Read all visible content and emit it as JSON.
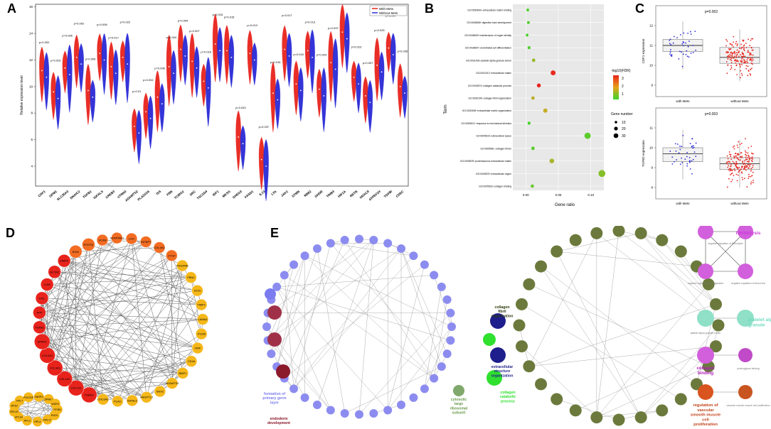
{
  "panels": {
    "A": "A",
    "B": "B",
    "C": "C",
    "D": "D",
    "E": "E"
  },
  "colors": {
    "with_mets": "#e8231c",
    "without_mets": "#2a2ad6",
    "network_red": "#e8231c",
    "network_orange": "#f26c22",
    "network_yellow": "#f5b719",
    "go_node_blue": "#8c8cf0",
    "go_node_olive": "#6b7a3c",
    "go_node_magenta": "#d25fdc",
    "go_node_mint": "#8fe0c6",
    "go_node_orange": "#d9541e"
  },
  "panelA": {
    "ylabel": "Relative expression level",
    "legend": [
      "With Mets",
      "Without Mets"
    ],
    "yticks": [
      "4",
      "6",
      "8",
      "10",
      "12",
      "14",
      "16"
    ],
    "genes": [
      "CDF1",
      "GPM1",
      "SLC35A3",
      "DNAIC2",
      "TGFB1",
      "IGFALS",
      "CREB3",
      "VTRN3",
      "ADAMTS2",
      "PLA2G16",
      "ISS",
      "FBN",
      "TCIRG1",
      "SRC",
      "TSC1D4",
      "IDF1",
      "MKSS",
      "SHEG3",
      "FASD1",
      "IL13",
      "LTA",
      "JAK1",
      "STMN",
      "RB82",
      "GHDR",
      "TRIB3",
      "HIF1A",
      "RETN",
      "HDAC9",
      "ATP6V1H",
      "TGFBI",
      "CDEC"
    ],
    "pvalues": [
      "p=0.002",
      "p=0.002",
      "p=0.006",
      "p=0.002",
      "p=0.005",
      "p=0.008",
      "p=0.017",
      "p=0.022",
      "p=0.01",
      "p=0.002",
      "p=0.006",
      "p=0.004",
      "p=0.004",
      "p=0.007",
      "p=0.018",
      "p=0.015",
      "p=0.015",
      "p=0.043",
      "p=0.013",
      "p=0.037",
      "p=0.015",
      "p=0.017",
      "p=0.043",
      "p=0.013",
      "p=0.024",
      "p=0.037",
      "p=0.044",
      "p=0.023",
      "p=0.007",
      "p=0.025",
      "p=0.047",
      "p=0.035"
    ]
  },
  "panelB": {
    "ylabel": "Term",
    "xlabel": "Gene ratio",
    "xticks": [
      "0.00",
      "0.05",
      "0.10"
    ],
    "terms": [
      "GO:0050840~extracellular matrix binding",
      "GO:0048565~digestive tract development",
      "GO:0048609~maintenance of organ identity",
      "GO:0038967~endothelial cell differentiation",
      "GO:0031093~platelet alpha granule lumen",
      "GO:0031012~extracellular matrix",
      "GO:0030574~collagen catabolic process",
      "GO:0030199~collagen fibril organization",
      "GO:0030198~extracellular matrix organization",
      "GO:0009612~response to mechanical stimulus",
      "GO:0005615~extracellular space",
      "GO:0005581~collagen trimer",
      "GO:0005578~proteinaceous extracellular matrix",
      "GO:0005576~extracellular region",
      "GO:0005518~collagen binding"
    ],
    "legend_color_title": "-log10(FDR)",
    "legend_color_ticks": [
      "3",
      "2",
      "1"
    ],
    "legend_size_title": "Gene number",
    "legend_size_ticks": [
      "10",
      "20",
      "30"
    ]
  },
  "chart_data": [
    {
      "type": "scatter",
      "title": "GO enrichment",
      "xlabel": "Gene ratio",
      "ylabel": "Term",
      "xlim": [
        -0.02,
        0.12
      ],
      "categories": [
        "extracellular matrix binding",
        "digestive tract development",
        "maintenance of organ identity",
        "endothelial cell differentiation",
        "platelet alpha granule lumen",
        "extracellular matrix",
        "collagen catabolic process",
        "collagen fibril organization",
        "extracellular matrix organization",
        "response to mechanical stimulus",
        "extracellular space",
        "collagen trimer",
        "proteinaceous extracellular matrix",
        "extracellular region",
        "collagen binding"
      ],
      "x": [
        0.003,
        0.004,
        0.002,
        0.005,
        0.012,
        0.042,
        0.02,
        0.011,
        0.03,
        0.005,
        0.095,
        0.011,
        0.04,
        0.117,
        0.01
      ],
      "neg_log10_fdr": [
        0.5,
        0.5,
        0.4,
        0.5,
        1.2,
        3.4,
        3.5,
        1.5,
        1.6,
        0.4,
        0.6,
        0.6,
        1.3,
        1.0,
        0.7
      ],
      "gene_number": [
        2,
        2,
        2,
        3,
        5,
        17,
        8,
        5,
        11,
        3,
        34,
        5,
        14,
        44,
        4
      ]
    },
    {
      "type": "box",
      "title": "p=0.002",
      "ylabel": "CDF1 expression",
      "categories": [
        "with Mets",
        "without Mets"
      ],
      "ylim": [
        8.5,
        12.5
      ],
      "median": [
        11.0,
        10.4
      ],
      "q1": [
        10.7,
        10.1
      ],
      "q3": [
        11.3,
        10.9
      ]
    },
    {
      "type": "box",
      "title": "p=0.003",
      "ylabel": "TGFB2 expression",
      "categories": [
        "with Mets",
        "without Mets"
      ],
      "ylim": [
        7.5,
        11.5
      ],
      "median": [
        9.7,
        9.2
      ],
      "q1": [
        9.3,
        8.9
      ],
      "q3": [
        10.0,
        9.5
      ]
    }
  ],
  "panelC": {
    "top": {
      "pvalue": "p=0.002",
      "ylabel": "CDF1 expression",
      "yticks": [
        "12",
        "11",
        "10",
        "9"
      ],
      "xticks": [
        "with Mets",
        "without Mets"
      ]
    },
    "bottom": {
      "pvalue": "p=0.003",
      "ylabel": "TGFB2 expression",
      "yticks": [
        "11",
        "10",
        "9",
        "8"
      ],
      "xticks": [
        "with Mets",
        "without Mets"
      ]
    }
  },
  "panelD": {
    "nodes": [
      "THBS2",
      "COL1A1",
      "COL1A2",
      "COL3A1",
      "COL5A1",
      "SPARC",
      "TGFB1",
      "APP",
      "FN1",
      "LUM",
      "ACTA2",
      "MMP2",
      "BGN",
      "POSTN",
      "VCAN",
      "SERPINE1",
      "LOX",
      "IGFBP7",
      "COL4A1",
      "CTGF",
      "PDGFRB",
      "FBN1",
      "DCN",
      "TIMP1",
      "LAMA4",
      "ITGA5",
      "VWF",
      "CD44",
      "BMP1",
      "ADAMTS2",
      "SNX2",
      "ANGPTL2",
      "IGFALS",
      "PLAU",
      "COL6A3",
      "RPL17",
      "RPL4",
      "RPL3",
      "RPL34",
      "RPL29",
      "RPS2",
      "RPL7",
      "POLR2F",
      "SNRPG",
      "CRNKL1",
      "WDR4",
      "SF3B1",
      "ENO1"
    ]
  },
  "panelE": {
    "groups": [
      {
        "label": "formation of primary germ layer",
        "color": "#7c7cf0"
      },
      {
        "label": "endoderm development",
        "color": "#8b1a2a"
      },
      {
        "label": "cytosolic large ribosomal subunit",
        "color": "#6a9a4a"
      },
      {
        "label": "collagen fibril organization",
        "color": "#2b3a0a"
      },
      {
        "label": "extracellular structure organization",
        "color": "#1e1e8c"
      },
      {
        "label": "collagen catabolic process",
        "color": "#2fe02f"
      },
      {
        "label": "fibrinolysis",
        "color": "#c93ad6"
      },
      {
        "label": "platelet alpha granule",
        "color": "#6fdbbe"
      },
      {
        "label": "collagen binding",
        "color": "#b01ab8"
      },
      {
        "label": "regulation of vascular smooth muscle cell proliferation",
        "color": "#c2421a"
      }
    ],
    "small_labels": {
      "neg_reg_fibrinolysis": "negative regulation of fibrinolysis",
      "neg_reg_coag": "negative regulation of coagulation",
      "neg_reg_blood_clot": "negative regulation of blood clot",
      "platelet_lumen": "platelet alpha granule lumen",
      "proteoglycan_binding": "proteoglycan binding",
      "vsmc_prolif": "vascular smooth muscle cell proliferation"
    }
  }
}
